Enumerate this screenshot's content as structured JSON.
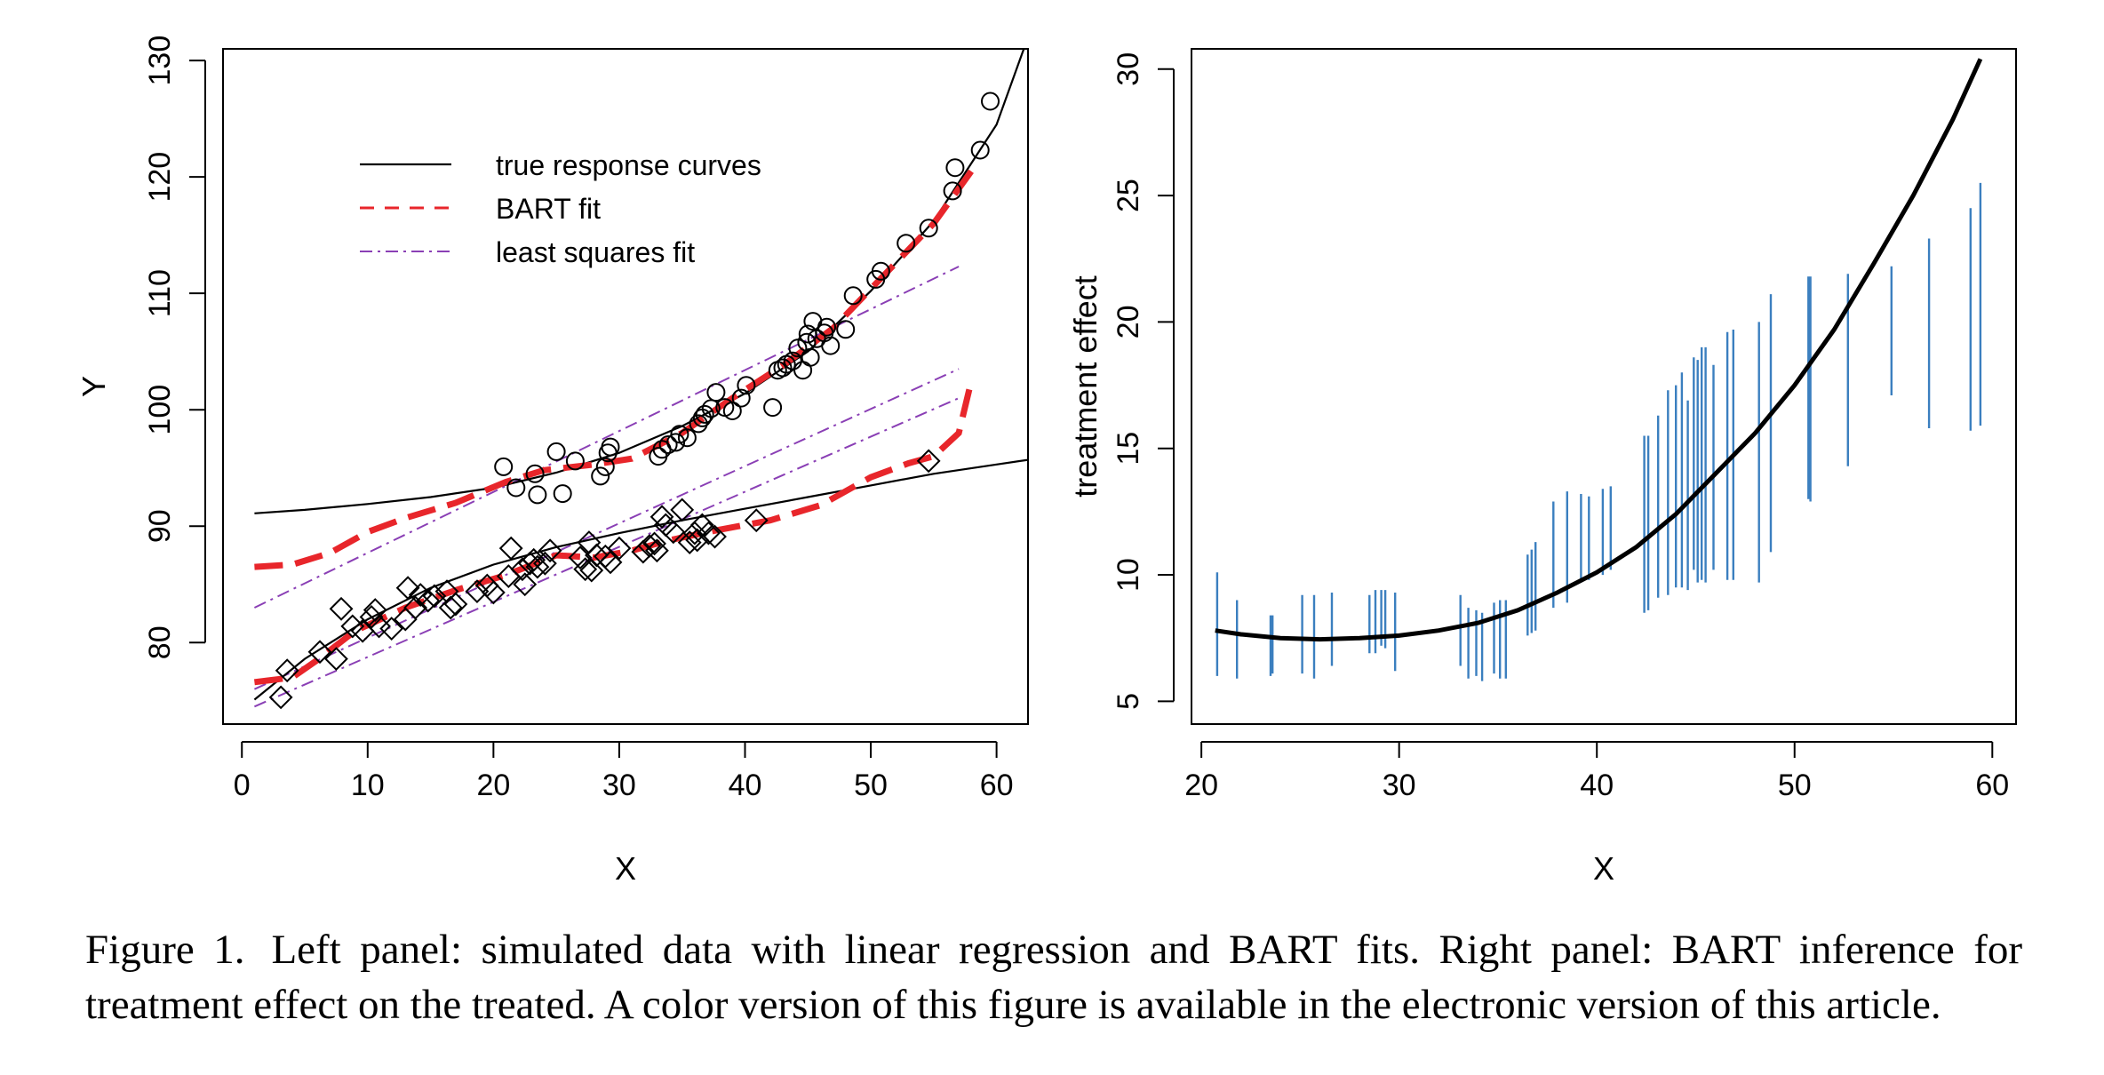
{
  "colors": {
    "axis": "#000000",
    "bart": "#e8262b",
    "lsq": "#8a3fb5",
    "interval": "#3b7fbf",
    "effect": "#000000"
  },
  "caption": {
    "label": "Figure 1.",
    "text": "Left panel: simulated data with linear regression and BART fits. Right panel: BART inference for treatment effect on the treated. A color version of this figure is available in the electronic version of this article."
  },
  "chart_data": [
    {
      "type": "scatter",
      "xlabel": "X",
      "ylabel": "Y",
      "xlim": [
        -1.5,
        62.5
      ],
      "ylim": [
        73,
        131
      ],
      "xticks": [
        0,
        10,
        20,
        30,
        40,
        50,
        60
      ],
      "yticks": [
        80,
        90,
        100,
        110,
        120,
        130
      ],
      "legend": {
        "placement": "top-left",
        "entries": [
          {
            "label": "true response curves",
            "style": "solid"
          },
          {
            "label": "BART fit",
            "style": "dashed"
          },
          {
            "label": "least squares fit",
            "style": "dashdot"
          }
        ]
      },
      "true_curves": {
        "upper": [
          [
            1,
            91.1
          ],
          [
            5,
            91.4
          ],
          [
            10,
            91.9
          ],
          [
            15,
            92.5
          ],
          [
            20,
            93.3
          ],
          [
            25,
            94.6
          ],
          [
            30,
            96.3
          ],
          [
            35,
            98.6
          ],
          [
            40,
            101.4
          ],
          [
            45,
            105.0
          ],
          [
            50,
            110.2
          ],
          [
            55,
            116.2
          ],
          [
            60,
            124.5
          ],
          [
            62.5,
            132
          ]
        ],
        "lower": [
          [
            1,
            75.1
          ],
          [
            5,
            78.6
          ],
          [
            10,
            82.0
          ],
          [
            15,
            84.7
          ],
          [
            20,
            86.7
          ],
          [
            25,
            88.2
          ],
          [
            30,
            89.4
          ],
          [
            35,
            90.5
          ],
          [
            40,
            91.5
          ],
          [
            45,
            92.5
          ],
          [
            50,
            93.5
          ],
          [
            55,
            94.5
          ],
          [
            60,
            95.3
          ],
          [
            62.5,
            95.7
          ]
        ]
      },
      "bart_fits": {
        "upper": [
          [
            1,
            86.5
          ],
          [
            4,
            86.7
          ],
          [
            7,
            87.7
          ],
          [
            10,
            89.5
          ],
          [
            13,
            90.7
          ],
          [
            17,
            92.0
          ],
          [
            21,
            93.8
          ],
          [
            24,
            94.8
          ],
          [
            28,
            95.3
          ],
          [
            31,
            95.8
          ],
          [
            35,
            98.0
          ],
          [
            39,
            101.0
          ],
          [
            43,
            103.8
          ],
          [
            47,
            107.0
          ],
          [
            51,
            111.5
          ],
          [
            55,
            116.0
          ],
          [
            58,
            120.5
          ]
        ],
        "lower": [
          [
            1,
            76.6
          ],
          [
            4,
            77.0
          ],
          [
            6,
            78.5
          ],
          [
            9,
            81.0
          ],
          [
            13,
            83.0
          ],
          [
            17,
            84.5
          ],
          [
            21,
            85.8
          ],
          [
            25,
            87.5
          ],
          [
            28,
            87.3
          ],
          [
            31,
            87.9
          ],
          [
            34,
            88.8
          ],
          [
            38,
            89.7
          ],
          [
            42,
            90.5
          ],
          [
            46,
            91.8
          ],
          [
            50,
            94.2
          ],
          [
            53,
            95.4
          ],
          [
            55,
            96.0
          ],
          [
            57,
            98.0
          ],
          [
            58,
            102.5
          ]
        ]
      },
      "least_squares_fits": {
        "upper": [
          [
            1,
            83.0
          ],
          [
            57,
            112.3
          ]
        ],
        "middle": [
          [
            1,
            76.0
          ],
          [
            57,
            103.5
          ]
        ],
        "lower": [
          [
            1,
            74.5
          ],
          [
            57,
            101.0
          ]
        ]
      },
      "circles": [
        [
          20.8,
          95.1
        ],
        [
          21.8,
          93.3
        ],
        [
          23.3,
          94.5
        ],
        [
          23.5,
          92.7
        ],
        [
          25.0,
          96.4
        ],
        [
          25.5,
          92.8
        ],
        [
          26.5,
          95.6
        ],
        [
          28.5,
          94.3
        ],
        [
          28.9,
          95.1
        ],
        [
          29.1,
          96.3
        ],
        [
          29.3,
          96.8
        ],
        [
          33.1,
          96.0
        ],
        [
          33.4,
          96.6
        ],
        [
          33.9,
          97.0
        ],
        [
          34.5,
          97.2
        ],
        [
          34.8,
          97.9
        ],
        [
          35.4,
          97.6
        ],
        [
          36.3,
          98.8
        ],
        [
          36.6,
          99.3
        ],
        [
          36.8,
          99.6
        ],
        [
          37.3,
          100.1
        ],
        [
          37.7,
          101.5
        ],
        [
          38.4,
          100.2
        ],
        [
          39.0,
          99.9
        ],
        [
          39.7,
          101.0
        ],
        [
          40.1,
          102.1
        ],
        [
          42.2,
          100.2
        ],
        [
          42.6,
          103.4
        ],
        [
          43.0,
          103.6
        ],
        [
          43.3,
          103.9
        ],
        [
          43.8,
          104.2
        ],
        [
          44.2,
          105.3
        ],
        [
          44.6,
          103.4
        ],
        [
          44.9,
          105.8
        ],
        [
          45.0,
          106.5
        ],
        [
          45.2,
          104.5
        ],
        [
          45.4,
          107.6
        ],
        [
          45.7,
          106.1
        ],
        [
          46.3,
          106.6
        ],
        [
          46.5,
          107.1
        ],
        [
          46.8,
          105.5
        ],
        [
          48.0,
          106.9
        ],
        [
          48.6,
          109.8
        ],
        [
          50.4,
          111.2
        ],
        [
          50.8,
          111.9
        ],
        [
          52.8,
          114.3
        ],
        [
          54.6,
          115.6
        ],
        [
          56.5,
          118.8
        ],
        [
          56.7,
          120.8
        ],
        [
          58.7,
          122.3
        ],
        [
          59.5,
          126.5
        ]
      ],
      "diamonds": [
        [
          3.1,
          75.3
        ],
        [
          3.6,
          77.6
        ],
        [
          6.2,
          79.2
        ],
        [
          7.5,
          78.6
        ],
        [
          7.9,
          82.9
        ],
        [
          8.8,
          81.4
        ],
        [
          9.6,
          81.0
        ],
        [
          10.3,
          82.2
        ],
        [
          10.6,
          82.8
        ],
        [
          10.9,
          81.4
        ],
        [
          11.9,
          81.2
        ],
        [
          13.0,
          82.0
        ],
        [
          13.2,
          84.7
        ],
        [
          13.8,
          83.0
        ],
        [
          14.2,
          84.1
        ],
        [
          14.8,
          83.6
        ],
        [
          15.3,
          84.0
        ],
        [
          16.3,
          84.4
        ],
        [
          16.6,
          83.0
        ],
        [
          17.0,
          83.3
        ],
        [
          18.7,
          84.4
        ],
        [
          19.5,
          84.9
        ],
        [
          20.0,
          84.3
        ],
        [
          21.2,
          85.7
        ],
        [
          21.4,
          88.1
        ],
        [
          22.3,
          86.3
        ],
        [
          22.5,
          85.0
        ],
        [
          22.9,
          86.8
        ],
        [
          23.2,
          87.1
        ],
        [
          23.5,
          86.5
        ],
        [
          24.1,
          86.8
        ],
        [
          24.5,
          87.9
        ],
        [
          26.9,
          87.3
        ],
        [
          27.3,
          86.3
        ],
        [
          27.6,
          88.6
        ],
        [
          27.8,
          86.2
        ],
        [
          28.2,
          87.5
        ],
        [
          28.9,
          87.4
        ],
        [
          29.3,
          86.9
        ],
        [
          30.0,
          88.1
        ],
        [
          31.9,
          87.8
        ],
        [
          32.4,
          88.3
        ],
        [
          32.8,
          88.5
        ],
        [
          33.0,
          87.9
        ],
        [
          33.4,
          90.8
        ],
        [
          33.7,
          90.1
        ],
        [
          34.3,
          89.5
        ],
        [
          35.0,
          91.4
        ],
        [
          35.6,
          88.6
        ],
        [
          36.0,
          89.4
        ],
        [
          36.2,
          88.8
        ],
        [
          36.6,
          90.1
        ],
        [
          37.1,
          89.4
        ],
        [
          37.6,
          89.1
        ],
        [
          40.9,
          90.5
        ],
        [
          54.6,
          95.6
        ]
      ]
    },
    {
      "type": "line",
      "xlabel": "X",
      "ylabel": "treatment effect",
      "xlim": [
        19.5,
        61.2
      ],
      "ylim": [
        4.1,
        30.8
      ],
      "xticks": [
        20,
        30,
        40,
        50,
        60
      ],
      "yticks": [
        5,
        10,
        15,
        20,
        25,
        30
      ],
      "effect_curve": [
        [
          20.7,
          7.8
        ],
        [
          22,
          7.65
        ],
        [
          24,
          7.5
        ],
        [
          26,
          7.45
        ],
        [
          28,
          7.5
        ],
        [
          30,
          7.6
        ],
        [
          32,
          7.8
        ],
        [
          34,
          8.1
        ],
        [
          36,
          8.6
        ],
        [
          38,
          9.3
        ],
        [
          40,
          10.1
        ],
        [
          42,
          11.1
        ],
        [
          44,
          12.4
        ],
        [
          46,
          14.0
        ],
        [
          48,
          15.6
        ],
        [
          50,
          17.5
        ],
        [
          52,
          19.7
        ],
        [
          54,
          22.3
        ],
        [
          56,
          25.0
        ],
        [
          58,
          28.0
        ],
        [
          59.4,
          30.4
        ]
      ],
      "intervals": [
        [
          20.8,
          6.0,
          10.1
        ],
        [
          21.8,
          5.9,
          9.0
        ],
        [
          23.5,
          6.0,
          8.4
        ],
        [
          23.6,
          6.1,
          8.4
        ],
        [
          25.1,
          6.1,
          9.2
        ],
        [
          25.7,
          5.9,
          9.2
        ],
        [
          26.6,
          6.4,
          9.3
        ],
        [
          28.5,
          6.9,
          9.2
        ],
        [
          28.8,
          6.9,
          9.4
        ],
        [
          29.1,
          7.2,
          9.4
        ],
        [
          29.3,
          7.1,
          9.4
        ],
        [
          29.8,
          6.2,
          9.3
        ],
        [
          33.1,
          6.4,
          9.2
        ],
        [
          33.5,
          5.9,
          8.7
        ],
        [
          33.9,
          6.0,
          8.6
        ],
        [
          34.2,
          5.8,
          8.5
        ],
        [
          34.8,
          6.1,
          8.9
        ],
        [
          35.1,
          5.9,
          9.0
        ],
        [
          35.4,
          5.9,
          9.0
        ],
        [
          36.5,
          7.6,
          10.8
        ],
        [
          36.7,
          7.7,
          11.0
        ],
        [
          36.9,
          7.8,
          11.3
        ],
        [
          37.8,
          8.7,
          12.9
        ],
        [
          38.5,
          8.9,
          13.3
        ],
        [
          39.2,
          9.7,
          13.2
        ],
        [
          39.6,
          9.8,
          13.1
        ],
        [
          40.3,
          10.0,
          13.4
        ],
        [
          40.7,
          10.2,
          13.5
        ],
        [
          42.4,
          8.5,
          15.5
        ],
        [
          42.6,
          8.6,
          15.5
        ],
        [
          43.1,
          9.1,
          16.3
        ],
        [
          43.6,
          9.2,
          17.3
        ],
        [
          44.0,
          9.5,
          17.5
        ],
        [
          44.3,
          9.5,
          18.0
        ],
        [
          44.6,
          9.4,
          16.9
        ],
        [
          44.9,
          10.2,
          18.6
        ],
        [
          45.1,
          9.7,
          18.5
        ],
        [
          45.3,
          9.8,
          19.0
        ],
        [
          45.5,
          9.7,
          19.0
        ],
        [
          45.9,
          10.2,
          18.3
        ],
        [
          46.6,
          9.8,
          19.6
        ],
        [
          46.9,
          9.8,
          19.7
        ],
        [
          48.2,
          9.7,
          20.0
        ],
        [
          48.8,
          10.9,
          21.1
        ],
        [
          50.7,
          13.0,
          21.8
        ],
        [
          50.8,
          12.9,
          21.8
        ],
        [
          52.7,
          14.3,
          21.9
        ],
        [
          54.9,
          17.1,
          22.2
        ],
        [
          56.8,
          15.8,
          23.3
        ],
        [
          58.9,
          15.7,
          24.5
        ],
        [
          59.4,
          15.9,
          25.5
        ]
      ]
    }
  ]
}
